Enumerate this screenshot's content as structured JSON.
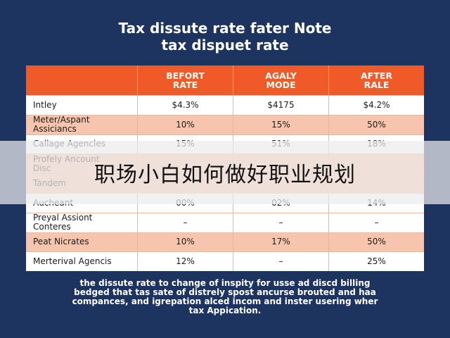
{
  "header": {
    "title": [
      "Tax dissute rate fater Note",
      "tax dispuet rate"
    ]
  },
  "table": {
    "columns": [
      "",
      "BEFORT\nRATE",
      "AGALY\nMODE",
      "AFTER\nRALE"
    ],
    "rows": [
      [
        "Intley",
        "$4.3%",
        "$4175",
        "$4.2%"
      ],
      [
        "Meter/Aspant\nAssiciancs",
        "10%",
        "15%",
        "50%"
      ],
      [
        "Callage Agencies",
        "15%",
        "51%",
        "18%"
      ],
      [
        "Profely Ancount\nDisc"
      ],
      [
        "Tandem"
      ],
      [
        "Aucheant",
        "00%",
        "02%",
        "14%"
      ],
      [
        "Preyal Assiont\nConteres",
        "–",
        "–",
        "–"
      ],
      [
        "Peat Nicrates",
        "10%",
        "17%",
        "50%"
      ],
      [
        "Merterival Agencis",
        "12%",
        "–",
        "25%"
      ]
    ]
  },
  "footer": "the dissute rate to change of inspity for usse ad discd billing\nbedged that tas sate of distrely spost ancurse brouted and haa\ncompances, and igrepation alced incom and inster usering wher\ntax Appication.",
  "banner": "职场小白如何做好职业规划"
}
